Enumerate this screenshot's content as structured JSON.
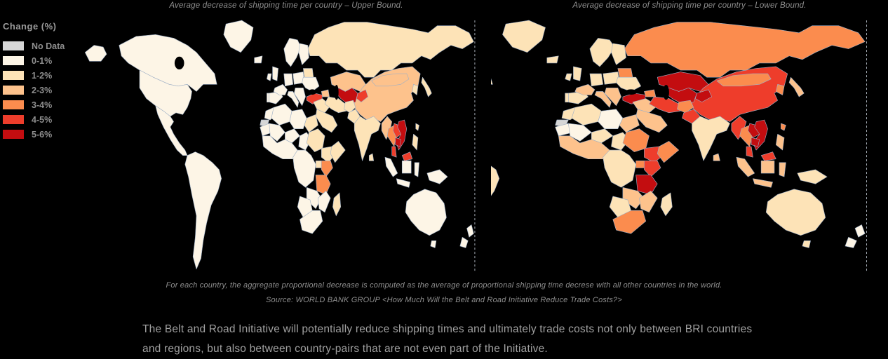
{
  "page": {
    "background": "#000000"
  },
  "legend": {
    "title": "Change  (%)"
  },
  "chart_data": {
    "type": "heatmap",
    "subtype": "choropleth-world-maps",
    "maps": [
      {
        "title": "Average decrease of shipping time per country – Upper Bound.",
        "bound": "Upper Bound"
      },
      {
        "title": "Average decrease of shipping time per country – Lower Bound.",
        "bound": "Lower Bound"
      }
    ],
    "legend_position": "top-left",
    "buckets": [
      {
        "label": "No Data",
        "color": "#d6d6d6"
      },
      {
        "label": "0-1%",
        "color": "#fdf5e6"
      },
      {
        "label": "1-2%",
        "color": "#fde3b7"
      },
      {
        "label": "2-3%",
        "color": "#fdc28c"
      },
      {
        "label": "3-4%",
        "color": "#fb8c4e"
      },
      {
        "label": "4-5%",
        "color": "#ee3d2b"
      },
      {
        "label": "5-6%",
        "color": "#c30d10"
      }
    ],
    "regions": {
      "alaska": [
        1,
        2
      ],
      "canada": [
        1,
        2
      ],
      "usa": [
        1,
        2
      ],
      "mexico_centam": [
        1,
        2
      ],
      "greenland": [
        1,
        2
      ],
      "south_america": [
        1,
        2
      ],
      "iceland": [
        1,
        2
      ],
      "uk": [
        1,
        2
      ],
      "ireland": [
        1,
        2
      ],
      "portugal": [
        1,
        2
      ],
      "spain": [
        1,
        2
      ],
      "france": [
        1,
        3
      ],
      "germany": [
        1,
        2
      ],
      "poland_baltics": [
        1,
        2
      ],
      "scandinavia": [
        1,
        2
      ],
      "finland": [
        1,
        2
      ],
      "italy": [
        1,
        3
      ],
      "balkans": [
        1,
        3
      ],
      "ukraine": [
        1,
        2
      ],
      "belarus": [
        2,
        4
      ],
      "russia": [
        2,
        4
      ],
      "turkey": [
        5,
        6
      ],
      "caucasus": [
        3,
        4
      ],
      "kazakhstan": [
        3,
        6
      ],
      "uzbek_turkmen": [
        6,
        6
      ],
      "kyrgyz_tajik": [
        5,
        6
      ],
      "middle_east": [
        2,
        3
      ],
      "saudi": [
        2,
        3
      ],
      "iran": [
        2,
        5
      ],
      "afghanistan": [
        2,
        4
      ],
      "pakistan": [
        2,
        5
      ],
      "india": [
        2,
        2
      ],
      "sri_lanka": [
        2,
        3
      ],
      "china": [
        3,
        5
      ],
      "mongolia": [
        3,
        4
      ],
      "korea": [
        2,
        4
      ],
      "japan": [
        2,
        3
      ],
      "myanmar": [
        3,
        5
      ],
      "thailand": [
        4,
        4
      ],
      "laos": [
        5,
        6
      ],
      "vietnam": [
        6,
        6
      ],
      "cambodia": [
        6,
        6
      ],
      "malaysia_pen": [
        5,
        5
      ],
      "borneo_malaysia": [
        5,
        5
      ],
      "indonesia_sumatra": [
        1,
        3
      ],
      "indonesia_java": [
        1,
        3
      ],
      "borneo_indonesia": [
        1,
        3
      ],
      "sulawesi": [
        1,
        3
      ],
      "new_guinea": [
        1,
        2
      ],
      "philippines": [
        2,
        3
      ],
      "taiwan": [
        2,
        4
      ],
      "australia": [
        1,
        2
      ],
      "tasmania": [
        1,
        2
      ],
      "nz_north": [
        1,
        1
      ],
      "nz_south": [
        1,
        1
      ],
      "morocco": [
        1,
        2
      ],
      "w_sahara": [
        0,
        0
      ],
      "algeria": [
        1,
        2
      ],
      "libya": [
        1,
        1
      ],
      "egypt": [
        2,
        3
      ],
      "mauritania": [
        1,
        1
      ],
      "mali": [
        1,
        1
      ],
      "niger": [
        1,
        2
      ],
      "chad": [
        1,
        2
      ],
      "sudan": [
        2,
        4
      ],
      "ethiopia": [
        2,
        5
      ],
      "somalia": [
        2,
        4
      ],
      "west_africa": [
        1,
        3
      ],
      "central_africa": [
        1,
        2
      ],
      "uganda": [
        2,
        4
      ],
      "kenya": [
        4,
        5
      ],
      "tanzania": [
        4,
        6
      ],
      "zambia_zimbabwe": [
        1,
        3
      ],
      "mozambique": [
        1,
        3
      ],
      "madagascar": [
        2,
        2
      ],
      "namibia_botswana": [
        1,
        2
      ],
      "south_africa": [
        1,
        4
      ]
    }
  },
  "captions": {
    "note": "For each country, the aggregate proportional decrease is computed as the average of proportional shipping time decrese with all other countries in the world.",
    "source": "Source: WORLD BANK GROUP <How Much Will the Belt and Road Initiative Reduce Trade Costs?>"
  },
  "footer": {
    "line1": "The Belt and Road Initiative will potentially reduce shipping times and ultimately trade costs not only between BRI countries",
    "line2": "and regions, but also between country-pairs that are not even part of the Initiative."
  }
}
